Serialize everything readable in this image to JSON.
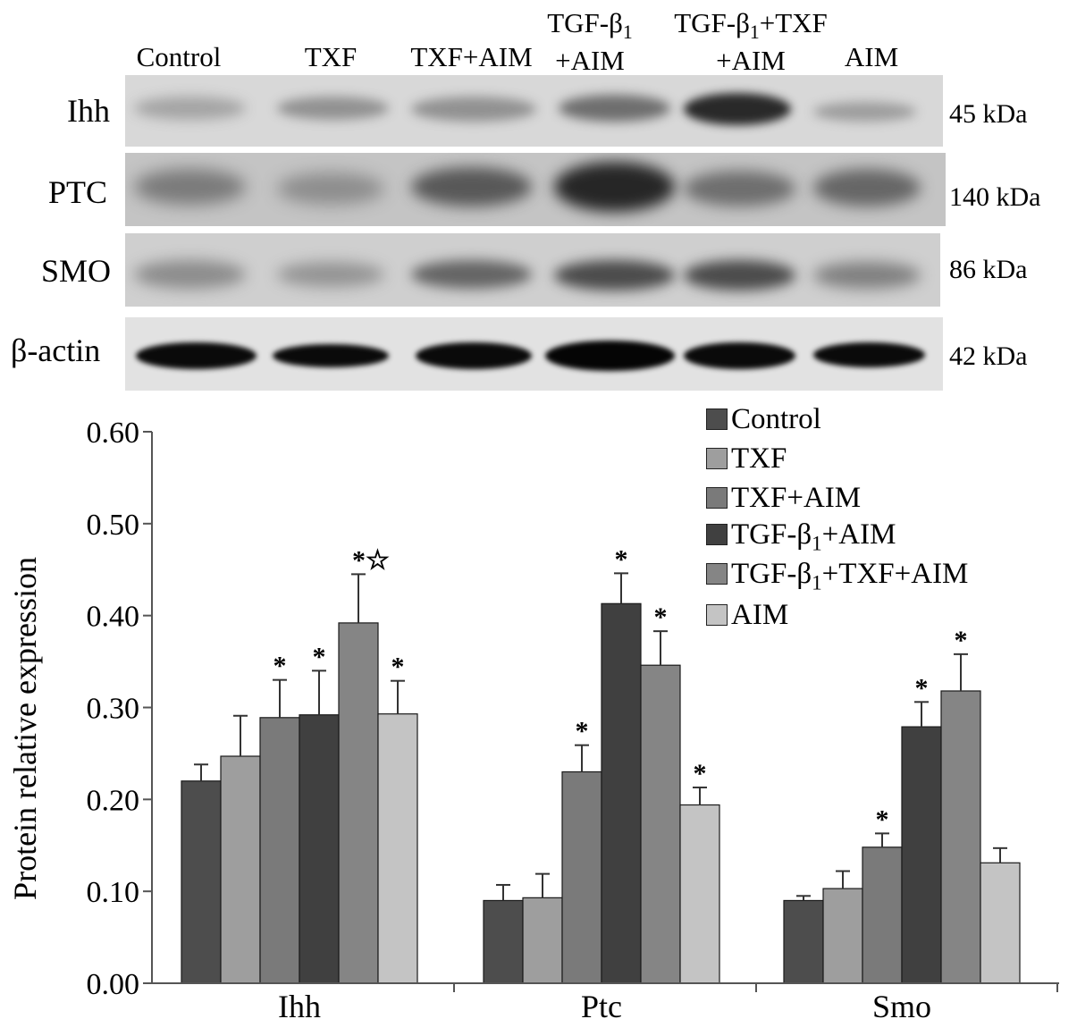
{
  "blot": {
    "lanes": [
      {
        "line1": "",
        "line2": "Control"
      },
      {
        "line1": "",
        "line2": "TXF"
      },
      {
        "line1": "",
        "line2": "TXF+AIM"
      },
      {
        "line1": "TGF-β1",
        "line2": "+AIM"
      },
      {
        "line1": "TGF-β1+TXF",
        "line2": "+AIM"
      },
      {
        "line1": "",
        "line2": "AIM"
      }
    ],
    "rows": [
      {
        "name": "Ihh",
        "mw": "45 kDa"
      },
      {
        "name": "PTC",
        "mw": "140 kDa"
      },
      {
        "name": "SMO",
        "mw": "86 kDa"
      },
      {
        "name": "β-actin",
        "mw": "42 kDa"
      }
    ]
  },
  "chart_data": {
    "type": "bar",
    "ylabel": "Protein relative expression",
    "ylim": [
      0,
      0.6
    ],
    "yticks": [
      "0.00",
      "0.10",
      "0.20",
      "0.30",
      "0.40",
      "0.50",
      "0.60"
    ],
    "categories": [
      "Ihh",
      "Ptc",
      "Smo"
    ],
    "series": [
      {
        "name": "Control",
        "color": "#4d4d4d",
        "values": [
          0.22,
          0.09,
          0.09
        ],
        "errors": [
          0.018,
          0.017,
          0.005
        ],
        "marks": [
          "",
          "",
          ""
        ]
      },
      {
        "name": "TXF",
        "color": "#9e9e9e",
        "values": [
          0.247,
          0.093,
          0.103
        ],
        "errors": [
          0.044,
          0.026,
          0.019
        ],
        "marks": [
          "",
          "",
          ""
        ]
      },
      {
        "name": "TXF+AIM",
        "color": "#7a7a7a",
        "values": [
          0.289,
          0.23,
          0.148
        ],
        "errors": [
          0.041,
          0.029,
          0.015
        ],
        "marks": [
          "*",
          "*",
          "*"
        ]
      },
      {
        "name": "TGF-β1+AIM",
        "color": "#404040",
        "values": [
          0.292,
          0.413,
          0.279
        ],
        "errors": [
          0.048,
          0.033,
          0.027
        ],
        "marks": [
          "*",
          "*",
          "*"
        ]
      },
      {
        "name": "TGF-β1+TXF+AIM",
        "color": "#858585",
        "values": [
          0.392,
          0.346,
          0.318
        ],
        "errors": [
          0.053,
          0.037,
          0.04
        ],
        "marks": [
          "*☆",
          "*",
          "*"
        ]
      },
      {
        "name": "AIM",
        "color": "#c4c4c4",
        "values": [
          0.293,
          0.194,
          0.131
        ],
        "errors": [
          0.036,
          0.019,
          0.016
        ],
        "marks": [
          "*",
          "*",
          ""
        ]
      }
    ]
  },
  "legend": {
    "items": [
      {
        "pre": "Control",
        "sub": "",
        "post": ""
      },
      {
        "pre": "TXF",
        "sub": "",
        "post": ""
      },
      {
        "pre": "TXF+AIM",
        "sub": "",
        "post": ""
      },
      {
        "pre": "TGF-β",
        "sub": "1",
        "post": "+AIM"
      },
      {
        "pre": "TGF-β",
        "sub": "1",
        "post": "+TXF+AIM"
      },
      {
        "pre": "AIM",
        "sub": "",
        "post": ""
      }
    ]
  }
}
